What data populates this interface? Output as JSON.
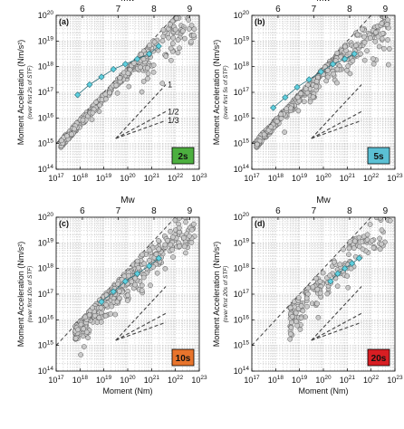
{
  "chart_data": [
    {
      "type": "scatter",
      "panel_label": "(a)",
      "duration_badge": "2s",
      "badge_color": "#4caf3f",
      "xlabel": "",
      "ylabel": "Moment Acceleration (Nm/s²)",
      "ylabel_sub": "(over first 2s of STF)",
      "top_axis_label": "Mw",
      "top_ticks": [
        "6",
        "7",
        "8",
        "9"
      ],
      "xlim_log10": [
        17,
        23
      ],
      "ylim_log10": [
        14,
        20
      ],
      "x_tick_labels": [
        "10^17",
        "10^18",
        "10^19",
        "10^20",
        "10^21",
        "10^22",
        "10^23"
      ],
      "y_tick_labels": [
        "10^14",
        "10^15",
        "10^16",
        "10^17",
        "10^18",
        "10^19",
        "10^20"
      ],
      "grid": true,
      "reference_lines": [
        "1",
        "1/2",
        "1/3"
      ],
      "trend": {
        "x_log10": [
          17.9,
          18.4,
          18.9,
          19.4,
          19.9,
          20.4,
          20.9,
          21.3
        ],
        "y_log10": [
          16.9,
          17.3,
          17.6,
          17.9,
          18.1,
          18.3,
          18.5,
          18.8
        ]
      },
      "scatter_model": {
        "n": 420,
        "x_range_log10": [
          17.2,
          22.8
        ],
        "slope": 0.5,
        "intercept": 8.2,
        "spread": 0.45,
        "upper_slope1": true
      }
    },
    {
      "type": "scatter",
      "panel_label": "(b)",
      "duration_badge": "5s",
      "badge_color": "#5bc0d4",
      "xlabel": "",
      "ylabel": "Moment Acceleration (Nm/s²)",
      "ylabel_sub": "(over first 5s of STF)",
      "top_axis_label": "Mw",
      "top_ticks": [
        "6",
        "7",
        "8",
        "9"
      ],
      "xlim_log10": [
        17,
        23
      ],
      "ylim_log10": [
        14,
        20
      ],
      "x_tick_labels": [
        "10^17",
        "10^18",
        "10^19",
        "10^20",
        "10^21",
        "10^22",
        "10^23"
      ],
      "y_tick_labels": [
        "10^14",
        "10^15",
        "10^16",
        "10^17",
        "10^18",
        "10^19",
        "10^20"
      ],
      "grid": true,
      "reference_lines": [],
      "trend": {
        "x_log10": [
          17.9,
          18.4,
          18.9,
          19.4,
          19.9,
          20.4,
          20.9,
          21.3
        ],
        "y_log10": [
          16.4,
          16.8,
          17.2,
          17.5,
          17.8,
          18.1,
          18.3,
          18.5
        ]
      },
      "scatter_model": {
        "n": 420,
        "x_range_log10": [
          17.2,
          22.8
        ],
        "slope": 0.65,
        "intercept": 4.9,
        "spread": 0.45,
        "upper_slope1": true
      }
    },
    {
      "type": "scatter",
      "panel_label": "(c)",
      "duration_badge": "10s",
      "badge_color": "#e8742c",
      "xlabel": "Moment (Nm)",
      "ylabel": "Moment Acceleration (Nm/s²)",
      "ylabel_sub": "(over first 10s of STF)",
      "top_axis_label": "Mw",
      "top_ticks": [
        "6",
        "7",
        "8",
        "9"
      ],
      "xlim_log10": [
        17,
        23
      ],
      "ylim_log10": [
        14,
        20
      ],
      "x_tick_labels": [
        "10^17",
        "10^18",
        "10^19",
        "10^20",
        "10^21",
        "10^22",
        "10^23"
      ],
      "y_tick_labels": [
        "10^14",
        "10^15",
        "10^16",
        "10^17",
        "10^18",
        "10^19",
        "10^20"
      ],
      "grid": true,
      "reference_lines": [],
      "trend": {
        "x_log10": [
          18.9,
          19.4,
          19.9,
          20.4,
          20.9,
          21.3
        ],
        "y_log10": [
          16.7,
          17.1,
          17.5,
          17.8,
          18.1,
          18.4
        ]
      },
      "scatter_model": {
        "n": 420,
        "x_range_log10": [
          17.8,
          22.8
        ],
        "slope": 0.8,
        "intercept": 1.5,
        "spread": 0.4,
        "upper_slope1": true
      }
    },
    {
      "type": "scatter",
      "panel_label": "(d)",
      "duration_badge": "20s",
      "badge_color": "#d81e23",
      "xlabel": "Moment (Nm)",
      "ylabel": "Moment Acceleration (Nm/s²)",
      "ylabel_sub": "(over first 20s of STF)",
      "top_axis_label": "Mw",
      "top_ticks": [
        "6",
        "7",
        "8",
        "9"
      ],
      "xlim_log10": [
        17,
        23
      ],
      "ylim_log10": [
        14,
        20
      ],
      "x_tick_labels": [
        "10^17",
        "10^18",
        "10^19",
        "10^20",
        "10^21",
        "10^22",
        "10^23"
      ],
      "y_tick_labels": [
        "10^14",
        "10^15",
        "10^16",
        "10^17",
        "10^18",
        "10^19",
        "10^20"
      ],
      "grid": true,
      "reference_lines": [],
      "trend": {
        "x_log10": [
          20.3,
          20.6,
          20.9,
          21.2,
          21.5
        ],
        "y_log10": [
          17.5,
          17.8,
          18.0,
          18.2,
          18.4
        ]
      },
      "scatter_model": {
        "n": 180,
        "x_range_log10": [
          18.6,
          22.8
        ],
        "slope": 0.85,
        "intercept": 0.4,
        "spread": 0.4,
        "upper_slope1": true
      }
    }
  ],
  "colors": {
    "point_fill": "#c9c9c9",
    "point_stroke": "#555555",
    "trend_fill": "#5ed0df",
    "trend_stroke": "#2a6f7a",
    "grid": "#bdbdbd",
    "dashed": "#444444"
  }
}
